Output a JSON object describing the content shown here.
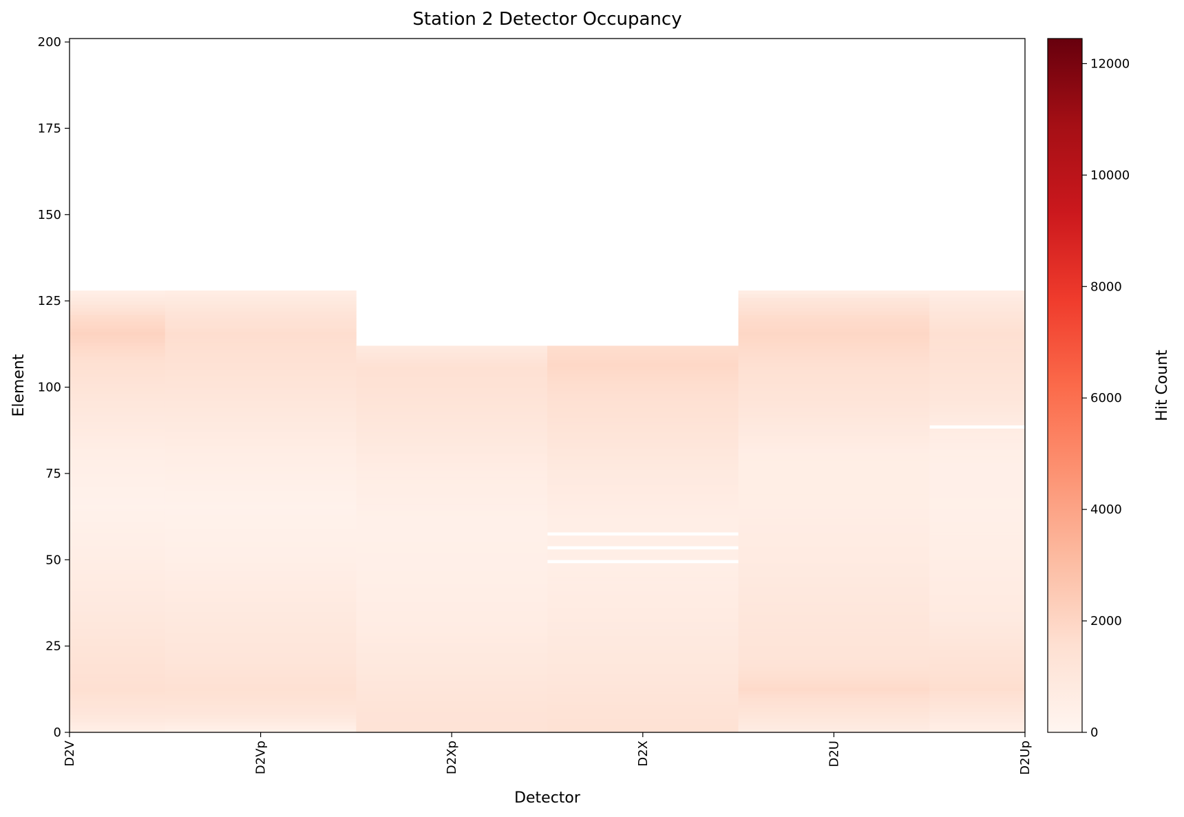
{
  "chart_data": {
    "type": "heatmap",
    "title": "Station 2 Detector Occupancy",
    "xlabel": "Detector",
    "ylabel": "Element",
    "colorbar_label": "Hit Count",
    "colormap": "Reds",
    "color_low": "#fff5f0",
    "color_high": "#67000d",
    "x_tick_labels": [
      "D2V",
      "D2Vp",
      "D2Xp",
      "D2X",
      "D2U",
      "D2Up"
    ],
    "x_ticks": [
      0,
      1,
      2,
      3,
      4,
      5
    ],
    "xlim": [
      0,
      5
    ],
    "y_ticks": [
      0,
      25,
      50,
      75,
      100,
      125,
      150,
      175,
      200
    ],
    "ylim": [
      0,
      201
    ],
    "colorbar_ticks": [
      0,
      2000,
      4000,
      6000,
      8000,
      10000,
      12000
    ],
    "colorbar_range": [
      0,
      12450
    ],
    "columns": [
      {
        "detector": "D2V",
        "x_range": [
          0,
          0.5
        ],
        "elements": 128,
        "profile": [
          [
            0,
            500
          ],
          [
            5,
            1100
          ],
          [
            12,
            1550
          ],
          [
            20,
            1350
          ],
          [
            35,
            900
          ],
          [
            50,
            550
          ],
          [
            65,
            250
          ],
          [
            80,
            500
          ],
          [
            95,
            1050
          ],
          [
            108,
            1600
          ],
          [
            115,
            2100
          ],
          [
            120,
            1700
          ],
          [
            124,
            1000
          ],
          [
            127,
            500
          ]
        ],
        "missing": []
      },
      {
        "detector": "D2Vp",
        "x_range": [
          0.5,
          1.5
        ],
        "elements": 128,
        "profile": [
          [
            0,
            400
          ],
          [
            5,
            1100
          ],
          [
            12,
            1500
          ],
          [
            20,
            1200
          ],
          [
            35,
            850
          ],
          [
            50,
            450
          ],
          [
            65,
            250
          ],
          [
            80,
            550
          ],
          [
            95,
            1050
          ],
          [
            105,
            1400
          ],
          [
            115,
            1650
          ],
          [
            121,
            1250
          ],
          [
            127,
            600
          ]
        ],
        "missing": []
      },
      {
        "detector": "D2Xp",
        "x_range": [
          1.5,
          2.5
        ],
        "elements": 112,
        "profile": [
          [
            0,
            1350
          ],
          [
            5,
            1300
          ],
          [
            15,
            1050
          ],
          [
            30,
            650
          ],
          [
            45,
            450
          ],
          [
            60,
            350
          ],
          [
            75,
            600
          ],
          [
            85,
            950
          ],
          [
            95,
            1250
          ],
          [
            105,
            1500
          ],
          [
            111,
            900
          ]
        ],
        "missing": []
      },
      {
        "detector": "D2X",
        "x_range": [
          2.5,
          3.5
        ],
        "elements": 112,
        "profile": [
          [
            0,
            1450
          ],
          [
            5,
            1350
          ],
          [
            15,
            1100
          ],
          [
            30,
            800
          ],
          [
            45,
            550
          ],
          [
            60,
            500
          ],
          [
            75,
            850
          ],
          [
            90,
            1350
          ],
          [
            100,
            1650
          ],
          [
            106,
            1900
          ],
          [
            111,
            1700
          ]
        ],
        "missing": [
          49,
          53,
          57
        ]
      },
      {
        "detector": "D2U",
        "x_range": [
          3.5,
          4.5
        ],
        "elements": 128,
        "profile": [
          [
            0,
            700
          ],
          [
            5,
            1200
          ],
          [
            12,
            1800
          ],
          [
            20,
            1300
          ],
          [
            35,
            1050
          ],
          [
            50,
            750
          ],
          [
            65,
            550
          ],
          [
            80,
            550
          ],
          [
            95,
            1200
          ],
          [
            105,
            1500
          ],
          [
            115,
            1950
          ],
          [
            120,
            1700
          ],
          [
            125,
            1100
          ],
          [
            127,
            600
          ]
        ],
        "missing": []
      },
      {
        "detector": "D2Up",
        "x_range": [
          4.5,
          5
        ],
        "elements": 128,
        "profile": [
          [
            0,
            500
          ],
          [
            5,
            1000
          ],
          [
            12,
            1650
          ],
          [
            20,
            1350
          ],
          [
            33,
            800
          ],
          [
            50,
            550
          ],
          [
            65,
            400
          ],
          [
            80,
            450
          ],
          [
            87,
            650
          ],
          [
            95,
            1050
          ],
          [
            105,
            1350
          ],
          [
            115,
            1550
          ],
          [
            121,
            1150
          ],
          [
            127,
            600
          ]
        ],
        "missing": [
          88
        ]
      }
    ]
  }
}
